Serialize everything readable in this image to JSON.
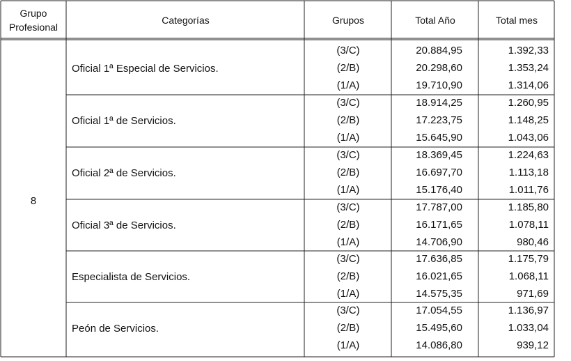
{
  "table": {
    "header": [
      "Grupo Profesional",
      "Categorías",
      "Grupos",
      "Total Año",
      "Total mes"
    ],
    "group": "8",
    "categories": [
      {
        "name": "Oficial 1ª Especial de Servicios.",
        "rows": [
          [
            "(3/C)",
            "20.884,95",
            "1.392,33"
          ],
          [
            "(2/B)",
            "20.298,60",
            "1.353,24"
          ],
          [
            "(1/A)",
            "19.710,90",
            "1.314,06"
          ]
        ]
      },
      {
        "name": "Oficial 1ª de Servicios.",
        "rows": [
          [
            "(3/C)",
            "18.914,25",
            "1.260,95"
          ],
          [
            "(2/B)",
            "17.223,75",
            "1.148,25"
          ],
          [
            "(1/A)",
            "15.645,90",
            "1.043,06"
          ]
        ]
      },
      {
        "name": "Oficial 2ª de Servicios.",
        "rows": [
          [
            "(3/C)",
            "18.369,45",
            "1.224,63"
          ],
          [
            "(2/B)",
            "16.697,70",
            "1.113,18"
          ],
          [
            "(1/A)",
            "15.176,40",
            "1.011,76"
          ]
        ]
      },
      {
        "name": "Oficial 3ª de Servicios.",
        "rows": [
          [
            "(3/C)",
            "17.787,00",
            "1.185,80"
          ],
          [
            "(2/B)",
            "16.171,65",
            "1.078,11"
          ],
          [
            "(1/A)",
            "14.706,90",
            "980,46"
          ]
        ]
      },
      {
        "name": "Especialista de Servicios.",
        "rows": [
          [
            "(3/C)",
            "17.636,85",
            "1.175,79"
          ],
          [
            "(2/B)",
            "16.021,65",
            "1.068,11"
          ],
          [
            "(1/A)",
            "14.575,35",
            "971,69"
          ]
        ]
      },
      {
        "name": "Peón de Servicios.",
        "rows": [
          [
            "(3/C)",
            "17.054,55",
            "1.136,97"
          ],
          [
            "(2/B)",
            "15.495,60",
            "1.033,04"
          ],
          [
            "(1/A)",
            "14.086,80",
            "939,12"
          ]
        ]
      }
    ]
  }
}
